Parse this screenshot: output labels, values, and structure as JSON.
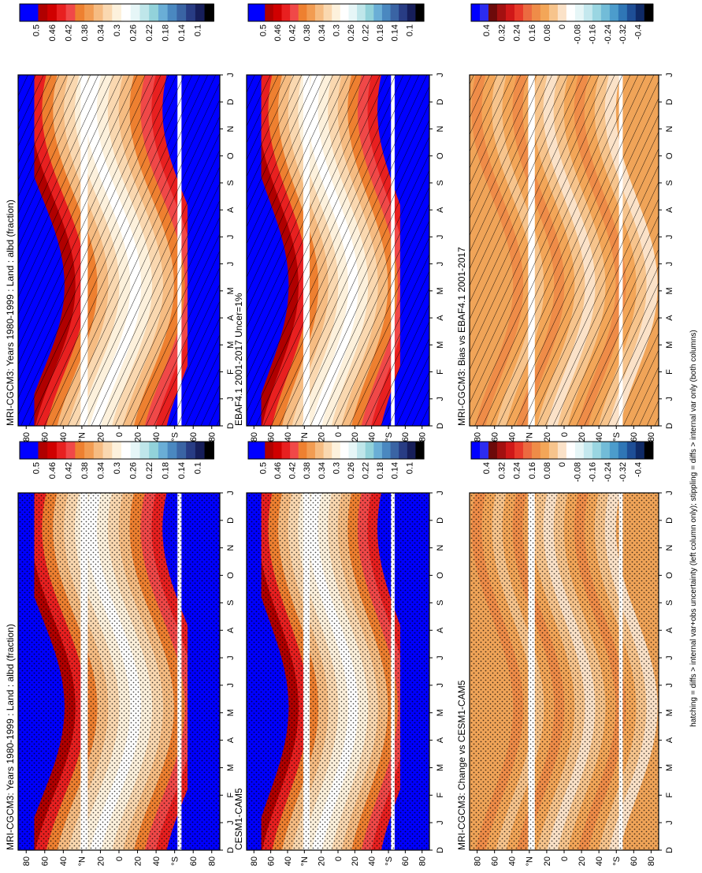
{
  "footnote": "hatching = diffs > internal var+obs uncertainty (left column only); stippling = diffs > internal var only (both columns)",
  "chart_data": [
    {
      "type": "heatmap",
      "title": "MRI-CGCM3: Years 1980-1999 : Land : albd (fraction)",
      "x_ticks": [
        "D",
        "J",
        "F",
        "M",
        "A",
        "M",
        "J",
        "J",
        "A",
        "S",
        "O",
        "N",
        "D",
        "J"
      ],
      "y_ticks": [
        "80",
        "60",
        "40",
        "°N",
        "20",
        "0",
        "20",
        "40",
        "°S",
        "60",
        "80"
      ],
      "colorbar_ticks": [
        "0.5",
        "0.46",
        "0.42",
        "0.38",
        "0.34",
        "0.3",
        "0.26",
        "0.22",
        "0.18",
        "0.14",
        "0.1"
      ],
      "colorbar_range": [
        0.1,
        0.5
      ],
      "overlay": "hatching"
    },
    {
      "type": "heatmap",
      "title": "MRI-CGCM3: Years 1980-1999 : Land : albd (fraction)",
      "x_ticks": [
        "D",
        "J",
        "F",
        "M",
        "A",
        "M",
        "J",
        "J",
        "A",
        "S",
        "O",
        "N",
        "D",
        "J"
      ],
      "y_ticks": [
        "80",
        "60",
        "40",
        "°N",
        "20",
        "0",
        "20",
        "40",
        "°S",
        "60",
        "80"
      ],
      "colorbar_ticks": [
        "0.5",
        "0.46",
        "0.42",
        "0.38",
        "0.34",
        "0.3",
        "0.26",
        "0.22",
        "0.18",
        "0.14",
        "0.1"
      ],
      "colorbar_range": [
        0.1,
        0.5
      ],
      "overlay": "stippling"
    },
    {
      "type": "heatmap",
      "title": "EBAF4.1 2001-2017 Uncer=1%",
      "x_ticks": [
        "D",
        "J",
        "F",
        "M",
        "A",
        "M",
        "J",
        "J",
        "A",
        "S",
        "O",
        "N",
        "D",
        "J"
      ],
      "y_ticks": [
        "80",
        "60",
        "40",
        "°N",
        "20",
        "0",
        "20",
        "40",
        "°S",
        "60",
        "80"
      ],
      "colorbar_ticks": [
        "0.5",
        "0.46",
        "0.42",
        "0.38",
        "0.34",
        "0.3",
        "0.26",
        "0.22",
        "0.18",
        "0.14",
        "0.1"
      ],
      "colorbar_range": [
        0.1,
        0.5
      ],
      "overlay": "hatching"
    },
    {
      "type": "heatmap",
      "title": "CESM1-CAM5",
      "x_ticks": [
        "D",
        "J",
        "F",
        "M",
        "A",
        "M",
        "J",
        "J",
        "A",
        "S",
        "O",
        "N",
        "D",
        "J"
      ],
      "y_ticks": [
        "80",
        "60",
        "40",
        "°N",
        "20",
        "0",
        "20",
        "40",
        "°S",
        "60",
        "80"
      ],
      "colorbar_ticks": [
        "0.5",
        "0.46",
        "0.42",
        "0.38",
        "0.34",
        "0.3",
        "0.26",
        "0.22",
        "0.18",
        "0.14",
        "0.1"
      ],
      "colorbar_range": [
        0.1,
        0.5
      ],
      "overlay": "stippling"
    },
    {
      "type": "heatmap",
      "title": "MRI-CGCM3: Bias vs EBAF4.1 2001-2017",
      "x_ticks": [
        "D",
        "J",
        "F",
        "M",
        "A",
        "M",
        "J",
        "J",
        "A",
        "S",
        "O",
        "N",
        "D",
        "J"
      ],
      "y_ticks": [
        "80",
        "60",
        "40",
        "°N",
        "20",
        "0",
        "20",
        "40",
        "°S",
        "60",
        "80"
      ],
      "colorbar_ticks": [
        "0.4",
        "0.32",
        "0.24",
        "0.16",
        "0.08",
        "0",
        "-0.08",
        "-0.16",
        "-0.24",
        "-0.32",
        "-0.4"
      ],
      "colorbar_range": [
        -0.4,
        0.4
      ],
      "overlay": "hatching"
    },
    {
      "type": "heatmap",
      "title": "MRI-CGCM3: Change vs CESM1-CAM5",
      "x_ticks": [
        "D",
        "J",
        "F",
        "M",
        "A",
        "M",
        "J",
        "J",
        "A",
        "S",
        "O",
        "N",
        "D",
        "J"
      ],
      "y_ticks": [
        "80",
        "60",
        "40",
        "°N",
        "20",
        "0",
        "20",
        "40",
        "°S",
        "60",
        "80"
      ],
      "colorbar_ticks": [
        "0.4",
        "0.32",
        "0.24",
        "0.16",
        "0.08",
        "0",
        "-0.08",
        "-0.16",
        "-0.24",
        "-0.32",
        "-0.4"
      ],
      "colorbar_range": [
        -0.4,
        0.4
      ],
      "overlay": "stippling"
    }
  ],
  "colors": {
    "abs_scale": [
      "#0000ff",
      "#0000ff",
      "#b00000",
      "#d00000",
      "#e82020",
      "#f04848",
      "#ee8030",
      "#f29c52",
      "#f6bc82",
      "#fad8b0",
      "#fdf1dc",
      "#ffffff",
      "#e6f6f7",
      "#bfe6ea",
      "#92d2da",
      "#6aaed6",
      "#4a88c0",
      "#3a64a4",
      "#283c84",
      "#161e5a",
      "#000000"
    ],
    "diff_scale": [
      "#0000ff",
      "#2c2cf0",
      "#6c0a0a",
      "#a31010",
      "#d01818",
      "#e83a2a",
      "#ec6a40",
      "#ef8c48",
      "#f3a658",
      "#f7c48c",
      "#fbe2c8",
      "#ffffff",
      "#e6f6f7",
      "#c4e8ee",
      "#9ad6e2",
      "#72bcd8",
      "#4c9ccc",
      "#2f76b6",
      "#1e4e96",
      "#0f2a66",
      "#000000"
    ]
  }
}
